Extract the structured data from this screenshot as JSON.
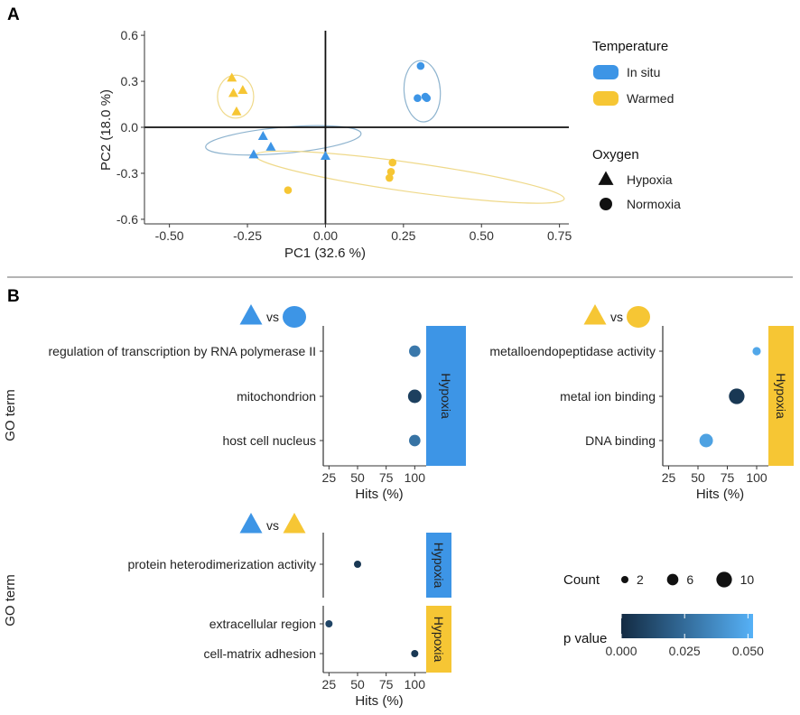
{
  "panels": {
    "a": "A",
    "b": "B"
  },
  "colors": {
    "in_situ": "#3d95e6",
    "warmed": "#f6c634",
    "pvalue_low": "#132b43",
    "pvalue_high": "#56b1f7",
    "ellipse_in_situ": "#8fb4cf",
    "ellipse_warmed": "#efd98a"
  },
  "chart_data": [
    {
      "id": "pca",
      "type": "scatter",
      "xlabel": "PC1 (32.6 %)",
      "ylabel": "PC2 (18.0 %)",
      "xlim": [
        -0.58,
        0.78
      ],
      "ylim": [
        -0.63,
        0.63
      ],
      "xticks": [
        -0.5,
        -0.25,
        0.0,
        0.25,
        0.5,
        0.75
      ],
      "xtick_labels": [
        "-0.50",
        "-0.25",
        "0.00",
        "0.25",
        "0.50",
        "0.75"
      ],
      "yticks": [
        0.6,
        0.3,
        0.0,
        -0.3,
        -0.6
      ],
      "ytick_labels": [
        "0.6",
        "0.3",
        "0.0",
        "-0.3",
        "-0.6"
      ],
      "points": [
        {
          "x": -0.3,
          "y": 0.32,
          "temp": "warmed",
          "oxygen": "hypoxia"
        },
        {
          "x": -0.295,
          "y": 0.22,
          "temp": "warmed",
          "oxygen": "hypoxia"
        },
        {
          "x": -0.265,
          "y": 0.24,
          "temp": "warmed",
          "oxygen": "hypoxia"
        },
        {
          "x": -0.285,
          "y": 0.1,
          "temp": "warmed",
          "oxygen": "hypoxia"
        },
        {
          "x": -0.2,
          "y": -0.06,
          "temp": "in_situ",
          "oxygen": "hypoxia"
        },
        {
          "x": -0.175,
          "y": -0.13,
          "temp": "in_situ",
          "oxygen": "hypoxia"
        },
        {
          "x": -0.23,
          "y": -0.18,
          "temp": "in_situ",
          "oxygen": "hypoxia"
        },
        {
          "x": 0.0,
          "y": -0.19,
          "temp": "in_situ",
          "oxygen": "hypoxia"
        },
        {
          "x": 0.305,
          "y": 0.4,
          "temp": "in_situ",
          "oxygen": "normoxia"
        },
        {
          "x": 0.295,
          "y": 0.19,
          "temp": "in_situ",
          "oxygen": "normoxia"
        },
        {
          "x": 0.32,
          "y": 0.2,
          "temp": "in_situ",
          "oxygen": "normoxia"
        },
        {
          "x": 0.325,
          "y": 0.19,
          "temp": "in_situ",
          "oxygen": "normoxia"
        },
        {
          "x": 0.215,
          "y": -0.23,
          "temp": "warmed",
          "oxygen": "normoxia"
        },
        {
          "x": 0.21,
          "y": -0.29,
          "temp": "warmed",
          "oxygen": "normoxia"
        },
        {
          "x": 0.205,
          "y": -0.33,
          "temp": "warmed",
          "oxygen": "normoxia"
        },
        {
          "x": -0.12,
          "y": -0.41,
          "temp": "warmed",
          "oxygen": "normoxia"
        }
      ],
      "ellipses": [
        {
          "temp": "warmed",
          "oxygen": "hypoxia",
          "cx": -0.288,
          "cy": 0.2,
          "rx": 0.058,
          "ry": 0.14,
          "angle_deg": 0
        },
        {
          "temp": "in_situ",
          "oxygen": "normoxia",
          "cx": 0.31,
          "cy": 0.235,
          "rx": 0.058,
          "ry": 0.2,
          "angle_deg": -4
        },
        {
          "temp": "in_situ",
          "oxygen": "hypoxia",
          "cx": -0.135,
          "cy": -0.085,
          "rx": 0.25,
          "ry": 0.085,
          "angle_deg": -5
        },
        {
          "temp": "warmed",
          "oxygen": "normoxia",
          "cx": 0.27,
          "cy": -0.325,
          "rx": 0.5,
          "ry": 0.095,
          "angle_deg": 8
        }
      ],
      "legend": {
        "temperature_title": "Temperature",
        "temperature": [
          {
            "key": "in_situ",
            "label": "In situ"
          },
          {
            "key": "warmed",
            "label": "Warmed"
          }
        ],
        "oxygen_title": "Oxygen",
        "oxygen": [
          {
            "key": "hypoxia",
            "label": "Hypoxia"
          },
          {
            "key": "normoxia",
            "label": "Normoxia"
          }
        ]
      }
    },
    {
      "id": "go_insitu_hyp_vs_norm",
      "type": "scatter",
      "comparison": {
        "left": {
          "shape": "triangle",
          "temp": "in_situ"
        },
        "vs": "vs",
        "right": {
          "shape": "circle",
          "temp": "in_situ"
        }
      },
      "ylabel": "GO term",
      "xlabel": "Hits (%)",
      "xlim": [
        20,
        110
      ],
      "xticks": [
        25,
        50,
        75,
        100
      ],
      "xtick_labels": [
        "25",
        "50",
        "75",
        "100"
      ],
      "facets": [
        {
          "strip": "Hypoxia",
          "strip_temp": "in_situ",
          "terms": [
            {
              "term": "regulation of transcription by RNA polymerase II",
              "hits": 100,
              "count": 6,
              "p": 0.03
            },
            {
              "term": "mitochondrion",
              "hits": 100,
              "count": 8,
              "p": 0.008
            },
            {
              "term": "host cell nucleus",
              "hits": 100,
              "count": 6,
              "p": 0.028
            }
          ]
        }
      ]
    },
    {
      "id": "go_warmed_hyp_vs_norm",
      "type": "scatter",
      "comparison": {
        "left": {
          "shape": "triangle",
          "temp": "warmed"
        },
        "vs": "vs",
        "right": {
          "shape": "circle",
          "temp": "warmed"
        }
      },
      "ylabel": "",
      "xlabel": "Hits (%)",
      "xlim": [
        20,
        110
      ],
      "xticks": [
        25,
        50,
        75,
        100
      ],
      "xtick_labels": [
        "25",
        "50",
        "75",
        "100"
      ],
      "facets": [
        {
          "strip": "Hypoxia",
          "strip_temp": "warmed",
          "terms": [
            {
              "term": "metalloendopeptidase activity",
              "hits": 100,
              "count": 3,
              "p": 0.048
            },
            {
              "term": "metal ion binding",
              "hits": 83,
              "count": 10,
              "p": 0.005
            },
            {
              "term": "DNA binding",
              "hits": 57,
              "count": 8,
              "p": 0.046
            }
          ]
        }
      ]
    },
    {
      "id": "go_hypoxia_insitu_vs_warmed",
      "type": "scatter",
      "comparison": {
        "left": {
          "shape": "triangle",
          "temp": "in_situ"
        },
        "vs": "vs",
        "right": {
          "shape": "triangle",
          "temp": "warmed"
        }
      },
      "ylabel": "GO term",
      "xlabel": "Hits (%)",
      "xlim": [
        20,
        110
      ],
      "xticks": [
        25,
        50,
        75,
        100
      ],
      "xtick_labels": [
        "25",
        "50",
        "75",
        "100"
      ],
      "facets": [
        {
          "strip": "Hypoxia",
          "strip_temp": "in_situ",
          "terms": [
            {
              "term": "protein heterodimerization activity",
              "hits": 50,
              "count": 2,
              "p": 0.005
            }
          ]
        },
        {
          "strip": "Hypoxia",
          "strip_temp": "warmed",
          "terms": [
            {
              "term": "extracellular region",
              "hits": 25,
              "count": 2,
              "p": 0.01
            },
            {
              "term": "cell-matrix adhesion",
              "hits": 100,
              "count": 2,
              "p": 0.005
            }
          ]
        }
      ]
    }
  ],
  "size_legend": {
    "title": "Count",
    "values": [
      2,
      6,
      10
    ],
    "labels": [
      "2",
      "6",
      "10"
    ]
  },
  "color_legend": {
    "title": "p value",
    "min": 0.0,
    "max": 0.052,
    "ticks": [
      0.0,
      0.025,
      0.05
    ],
    "labels": [
      "0.000",
      "0.025",
      "0.050"
    ]
  }
}
